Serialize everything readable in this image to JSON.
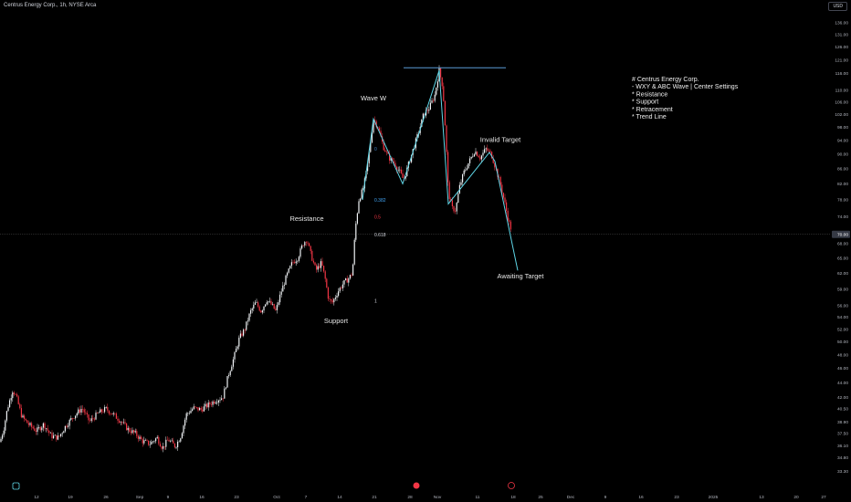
{
  "header": {
    "symbol_label": "Centrus Energy Corp., 1h, NYSE Arca",
    "currency": "USD"
  },
  "colors": {
    "background": "#000000",
    "up": "#f0f3f6",
    "down": "#f23645",
    "wave_line": "#5fd7e8",
    "level_line": "#5b9bd5",
    "axis_text": "#b2b5be",
    "price_badge": "#363a45",
    "fib_0": "#3f84c7",
    "fib_0382": "#42a5f5",
    "fib_05": "#f23645",
    "fib_0618": "#d1d4dc",
    "fib_1": "#d1d4dc"
  },
  "chart_data": {
    "type": "candlestick",
    "title": "Centrus Energy Corp., 1h, NYSE Arca",
    "y_axis": {
      "min": 31.3,
      "max": 141.0,
      "scale": "log",
      "ticks": [
        "33.30",
        "34.80",
        "36.10",
        "37.50",
        "38.90",
        "40.50",
        "42.00",
        "44.00",
        "46.00",
        "48.00",
        "50.00",
        "52.00",
        "54.00",
        "56.00",
        "59.00",
        "62.00",
        "65.00",
        "68.00",
        "70.00",
        "74.00",
        "78.00",
        "82.00",
        "86.00",
        "90.00",
        "94.00",
        "98.00",
        "102.00",
        "106.00",
        "110.00",
        "116.00",
        "121.00",
        "126.00",
        "131.00",
        "136.00"
      ],
      "current_price": "70.00"
    },
    "x_axis": {
      "ticks": [
        "12",
        "19",
        "26",
        "Sep",
        "9",
        "16",
        "23",
        "Oct",
        "7",
        "14",
        "21",
        "28",
        "Nov",
        "11",
        "18",
        "25",
        "Dec",
        "9",
        "16",
        "23",
        "2025",
        "13",
        "20",
        "27"
      ]
    },
    "price_path": [
      {
        "t": 0,
        "p": 36.5
      },
      {
        "t": 4,
        "p": 38.0
      },
      {
        "t": 8,
        "p": 40.5
      },
      {
        "t": 14,
        "p": 43.0
      },
      {
        "t": 18,
        "p": 42.0
      },
      {
        "t": 24,
        "p": 39.5
      },
      {
        "t": 32,
        "p": 38.5
      },
      {
        "t": 40,
        "p": 37.8
      },
      {
        "t": 48,
        "p": 38.6
      },
      {
        "t": 56,
        "p": 37.2
      },
      {
        "t": 64,
        "p": 37.0
      },
      {
        "t": 72,
        "p": 38.4
      },
      {
        "t": 80,
        "p": 39.5
      },
      {
        "t": 90,
        "p": 40.6
      },
      {
        "t": 98,
        "p": 38.9
      },
      {
        "t": 108,
        "p": 40.0
      },
      {
        "t": 116,
        "p": 40.5
      },
      {
        "t": 124,
        "p": 39.8
      },
      {
        "t": 132,
        "p": 39.0
      },
      {
        "t": 140,
        "p": 38.0
      },
      {
        "t": 148,
        "p": 37.5
      },
      {
        "t": 156,
        "p": 36.6
      },
      {
        "t": 164,
        "p": 36.3
      },
      {
        "t": 172,
        "p": 37.0
      },
      {
        "t": 178,
        "p": 35.8
      },
      {
        "t": 184,
        "p": 36.8
      },
      {
        "t": 192,
        "p": 36.0
      },
      {
        "t": 198,
        "p": 37.2
      },
      {
        "t": 204,
        "p": 39.8
      },
      {
        "t": 212,
        "p": 40.6
      },
      {
        "t": 220,
        "p": 40.4
      },
      {
        "t": 228,
        "p": 41.0
      },
      {
        "t": 236,
        "p": 41.6
      },
      {
        "t": 244,
        "p": 42.0
      },
      {
        "t": 250,
        "p": 45.0
      },
      {
        "t": 256,
        "p": 47.5
      },
      {
        "t": 262,
        "p": 50.5
      },
      {
        "t": 268,
        "p": 52.0
      },
      {
        "t": 274,
        "p": 54.8
      },
      {
        "t": 280,
        "p": 56.5
      },
      {
        "t": 286,
        "p": 55.0
      },
      {
        "t": 292,
        "p": 57.0
      },
      {
        "t": 298,
        "p": 56.0
      },
      {
        "t": 302,
        "p": 55.0
      },
      {
        "t": 308,
        "p": 58.5
      },
      {
        "t": 314,
        "p": 61.5
      },
      {
        "t": 320,
        "p": 64.0
      },
      {
        "t": 326,
        "p": 65.0
      },
      {
        "t": 332,
        "p": 68.0
      },
      {
        "t": 336,
        "p": 69.0
      },
      {
        "t": 340,
        "p": 66.0
      },
      {
        "t": 346,
        "p": 62.5
      },
      {
        "t": 352,
        "p": 64.0
      },
      {
        "t": 356,
        "p": 61.0
      },
      {
        "t": 360,
        "p": 57.0
      },
      {
        "t": 364,
        "p": 56.5
      },
      {
        "t": 370,
        "p": 58.5
      },
      {
        "t": 376,
        "p": 60.0
      },
      {
        "t": 382,
        "p": 61.0
      },
      {
        "t": 386,
        "p": 62.0
      },
      {
        "t": 389,
        "p": 71.0
      },
      {
        "t": 393,
        "p": 78.0
      },
      {
        "t": 398,
        "p": 81.0
      },
      {
        "t": 402,
        "p": 86.0
      },
      {
        "t": 406,
        "p": 94.0
      },
      {
        "t": 409,
        "p": 100.5
      },
      {
        "t": 414,
        "p": 98.0
      },
      {
        "t": 420,
        "p": 92.0
      },
      {
        "t": 426,
        "p": 89.0
      },
      {
        "t": 432,
        "p": 87.5
      },
      {
        "t": 438,
        "p": 85.0
      },
      {
        "t": 442,
        "p": 83.0
      },
      {
        "t": 446,
        "p": 86.0
      },
      {
        "t": 452,
        "p": 91.0
      },
      {
        "t": 458,
        "p": 96.0
      },
      {
        "t": 464,
        "p": 102.0
      },
      {
        "t": 470,
        "p": 104.0
      },
      {
        "t": 476,
        "p": 108.0
      },
      {
        "t": 481,
        "p": 117.0
      },
      {
        "t": 485,
        "p": 111.0
      },
      {
        "t": 488,
        "p": 96.0
      },
      {
        "t": 491,
        "p": 80.0
      },
      {
        "t": 495,
        "p": 76.0
      },
      {
        "t": 499,
        "p": 75.5
      },
      {
        "t": 503,
        "p": 81.0
      },
      {
        "t": 508,
        "p": 85.0
      },
      {
        "t": 514,
        "p": 88.0
      },
      {
        "t": 520,
        "p": 91.0
      },
      {
        "t": 526,
        "p": 89.0
      },
      {
        "t": 532,
        "p": 91.5
      },
      {
        "t": 538,
        "p": 90.0
      },
      {
        "t": 543,
        "p": 86.0
      },
      {
        "t": 548,
        "p": 82.0
      },
      {
        "t": 553,
        "p": 77.0
      },
      {
        "t": 557,
        "p": 73.0
      },
      {
        "t": 560,
        "p": 71.0
      }
    ],
    "overlays": {
      "resistance_price": 118.0,
      "wave_line": [
        {
          "t": 397,
          "p": 78.0
        },
        {
          "t": 409,
          "p": 100.5
        },
        {
          "t": 441,
          "p": 82.0
        },
        {
          "t": 481,
          "p": 117.0
        },
        {
          "t": 491,
          "p": 77.0
        },
        {
          "t": 536,
          "p": 90.5
        },
        {
          "t": 542,
          "p": 88.0
        },
        {
          "t": 567,
          "p": 62.5
        }
      ]
    },
    "fib_levels": [
      {
        "label": "0",
        "color_key": "fib_0",
        "t": 410,
        "p": 91.0
      },
      {
        "label": "0.382",
        "color_key": "fib_0382",
        "t": 410,
        "p": 77.5
      },
      {
        "label": "0.5",
        "color_key": "fib_05",
        "t": 410,
        "p": 73.5
      },
      {
        "label": "0.618",
        "color_key": "fib_0618",
        "t": 410,
        "p": 69.5
      },
      {
        "label": "1",
        "color_key": "fib_1",
        "t": 410,
        "p": 56.5
      }
    ],
    "annotations": [
      {
        "text": "Wave W",
        "t": 409,
        "p": 106.5
      },
      {
        "text": "Resistance",
        "t": 336,
        "p": 73.0
      },
      {
        "text": "Support",
        "t": 368,
        "p": 53.0
      },
      {
        "text": "Invalid Target",
        "t": 548,
        "p": 93.5
      },
      {
        "text": "Awaiting Target",
        "t": 570,
        "p": 61.0
      }
    ],
    "legend_note": {
      "lines": [
        "# Centrus Energy Corp.",
        "- WXY & ABC Wave | Center Settings",
        "* Resistance",
        "* Support",
        "* Retracement",
        "* Trend Line"
      ]
    },
    "bottom_icons": [
      "tradingview-logo-icon",
      "earnings-icon",
      "dividend-icon"
    ]
  }
}
